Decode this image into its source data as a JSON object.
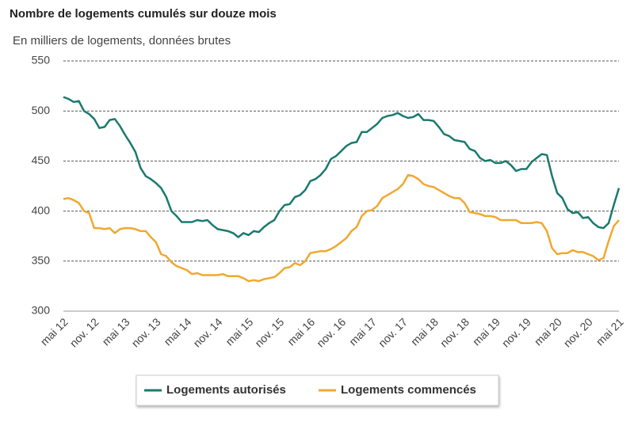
{
  "chart_data": {
    "type": "line",
    "title": "Nombre de logements cumulés sur douze mois",
    "subtitle": "En milliers de logements, données brutes",
    "categories": [
      "mai 12",
      null,
      null,
      null,
      null,
      null,
      "nov. 12",
      null,
      null,
      null,
      null,
      null,
      "mai 13",
      null,
      null,
      null,
      null,
      null,
      "nov. 13",
      null,
      null,
      null,
      null,
      null,
      "mai 14",
      null,
      null,
      null,
      null,
      null,
      "nov. 14",
      null,
      null,
      null,
      null,
      null,
      "mai 15",
      null,
      null,
      null,
      null,
      null,
      "nov. 15",
      null,
      null,
      null,
      null,
      null,
      "mai 16",
      null,
      null,
      null,
      null,
      null,
      "nov. 16",
      null,
      null,
      null,
      null,
      null,
      "mai 17",
      null,
      null,
      null,
      null,
      null,
      "nov. 17",
      null,
      null,
      null,
      null,
      null,
      "mai 18",
      null,
      null,
      null,
      null,
      null,
      "nov. 18",
      null,
      null,
      null,
      null,
      null,
      "mai 19",
      null,
      null,
      null,
      null,
      null,
      "nov. 19",
      null,
      null,
      null,
      null,
      null,
      "mai 20",
      null,
      null,
      null,
      null,
      null,
      "nov. 20",
      null,
      null,
      null,
      null,
      null,
      "mai 21"
    ],
    "series": [
      {
        "name": "Logements autorisés",
        "color": "#1a7a6e",
        "values": [
          514,
          512,
          509,
          510,
          500,
          497,
          492,
          483,
          484,
          491,
          492,
          485,
          476,
          468,
          459,
          443,
          435,
          432,
          428,
          423,
          414,
          400,
          395,
          389,
          389,
          389,
          391,
          390,
          391,
          386,
          382,
          381,
          380,
          378,
          374,
          378,
          376,
          380,
          379,
          384,
          388,
          391,
          400,
          406,
          407,
          414,
          416,
          421,
          430,
          432,
          436,
          442,
          452,
          455,
          460,
          465,
          468,
          469,
          479,
          479,
          483,
          487,
          493,
          495,
          496,
          498,
          495,
          493,
          494,
          497,
          491,
          491,
          490,
          484,
          477,
          475,
          471,
          470,
          469,
          462,
          460,
          453,
          450,
          451,
          448,
          448,
          450,
          446,
          440,
          442,
          442,
          449,
          453,
          457,
          456,
          435,
          418,
          413,
          402,
          398,
          399,
          393,
          394,
          388,
          384,
          383,
          388,
          406,
          423
        ]
      },
      {
        "name": "Logements commencés",
        "color": "#f0a830",
        "values": [
          412,
          413,
          411,
          408,
          400,
          398,
          383,
          383,
          382,
          383,
          378,
          382,
          383,
          383,
          382,
          380,
          380,
          374,
          369,
          357,
          355,
          349,
          345,
          343,
          341,
          337,
          338,
          336,
          336,
          336,
          336,
          337,
          335,
          335,
          335,
          333,
          330,
          331,
          330,
          332,
          333,
          334,
          338,
          343,
          344,
          348,
          346,
          350,
          358,
          359,
          360,
          360,
          362,
          365,
          369,
          373,
          380,
          384,
          395,
          400,
          401,
          405,
          413,
          416,
          419,
          422,
          427,
          436,
          435,
          432,
          427,
          425,
          424,
          421,
          418,
          415,
          413,
          413,
          408,
          399,
          398,
          397,
          395,
          395,
          394,
          391,
          391,
          391,
          391,
          388,
          388,
          388,
          389,
          388,
          380,
          363,
          357,
          358,
          358,
          361,
          359,
          359,
          357,
          355,
          351,
          353,
          370,
          385,
          391
        ]
      }
    ],
    "ylim": [
      300,
      550
    ],
    "yticks": [
      300,
      350,
      400,
      450,
      500,
      550
    ],
    "grid": true,
    "legend": "bottom"
  }
}
